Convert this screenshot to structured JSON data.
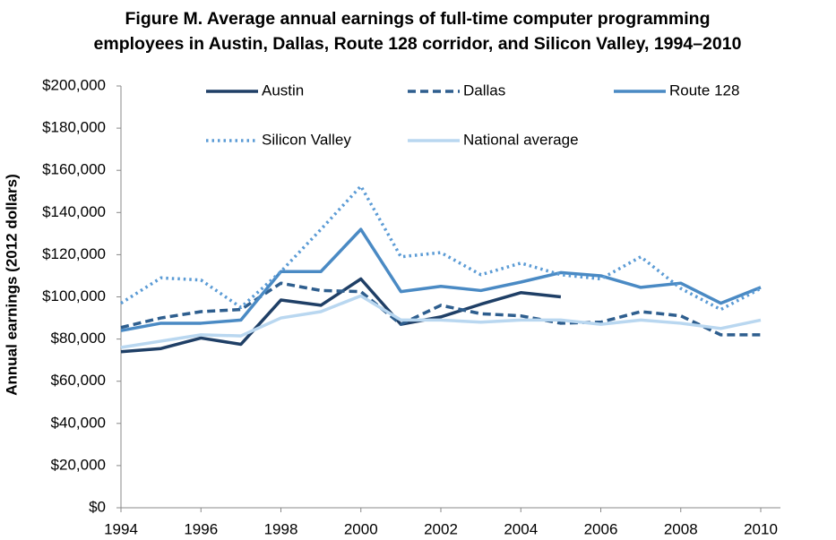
{
  "chart_data": {
    "type": "line",
    "title": [
      "Figure M. Average annual earnings of full-time computer programming",
      "employees in Austin, Dallas, Route 128 corridor, and Silicon Valley, 1994–2010"
    ],
    "y_label": "Annual earnings (2012 dollars)",
    "x": [
      1994,
      1995,
      1996,
      1997,
      1998,
      1999,
      2000,
      2001,
      2002,
      2003,
      2004,
      2005,
      2006,
      2007,
      2008,
      2009,
      2010
    ],
    "series": [
      {
        "name": "Austin",
        "color": "#1f3f66",
        "dash": "solid",
        "values": [
          74000,
          75500,
          80500,
          77500,
          98500,
          96000,
          108500,
          87000,
          90500,
          96500,
          102000,
          100000,
          null,
          null,
          null,
          null,
          null
        ]
      },
      {
        "name": "Dallas",
        "color": "#2e5e8e",
        "dash": "dashed",
        "values": [
          85500,
          90000,
          93000,
          94000,
          106500,
          103000,
          102500,
          87000,
          96000,
          92000,
          91000,
          87500,
          88000,
          93000,
          91000,
          82000,
          82000
        ]
      },
      {
        "name": "Route 128",
        "color": "#4a8ac4",
        "dash": "solid",
        "values": [
          84000,
          87500,
          87500,
          89000,
          112000,
          112000,
          132000,
          102500,
          105000,
          103000,
          107000,
          111500,
          110000,
          104500,
          106500,
          97000,
          104500
        ]
      },
      {
        "name": "Silicon Valley",
        "color": "#5b9bd5",
        "dash": "dotted",
        "values": [
          97000,
          109000,
          108000,
          95000,
          112000,
          132000,
          152500,
          119000,
          121000,
          110500,
          116000,
          110500,
          108500,
          119000,
          104000,
          94000,
          104000
        ]
      },
      {
        "name": "National average",
        "color": "#b9d7f0",
        "dash": "solid",
        "values": [
          76000,
          79000,
          82000,
          81500,
          90000,
          93000,
          100500,
          89000,
          89000,
          88000,
          89000,
          89000,
          87000,
          89000,
          87500,
          85000,
          89000
        ]
      }
    ],
    "xlim": [
      1994,
      2010
    ],
    "xticks": [
      1994,
      1996,
      1998,
      2000,
      2002,
      2004,
      2006,
      2008,
      2010
    ],
    "ylim": [
      0,
      200000
    ],
    "yticks": [
      {
        "value": 0,
        "label": "$0"
      },
      {
        "value": 20000,
        "label": "$20,000"
      },
      {
        "value": 40000,
        "label": "$40,000"
      },
      {
        "value": 60000,
        "label": "$60,000"
      },
      {
        "value": 80000,
        "label": "$80,000"
      },
      {
        "value": 100000,
        "label": "$100,000"
      },
      {
        "value": 120000,
        "label": "$120,000"
      },
      {
        "value": 140000,
        "label": "$140,000"
      },
      {
        "value": 160000,
        "label": "$160,000"
      },
      {
        "value": 180000,
        "label": "$180,000"
      },
      {
        "value": 200000,
        "label": "$200,000"
      }
    ],
    "grid": false
  }
}
